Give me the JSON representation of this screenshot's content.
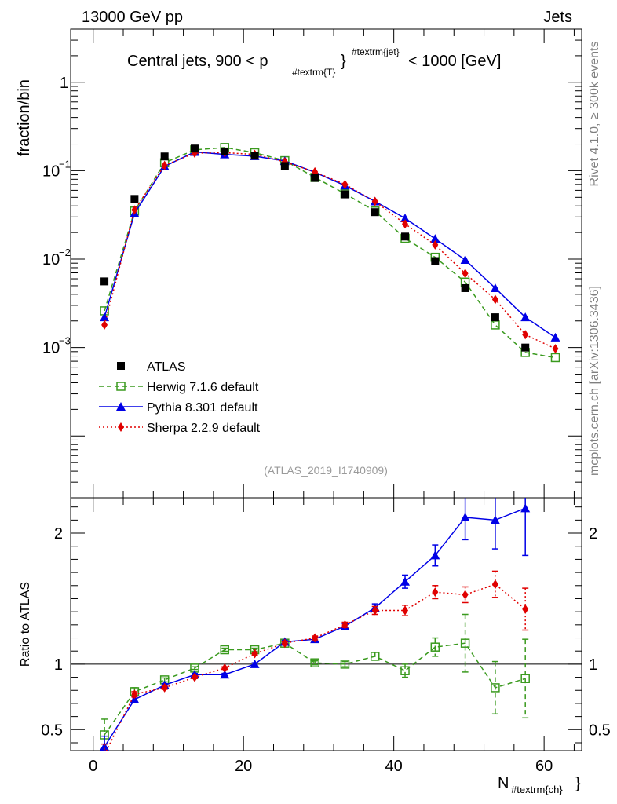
{
  "chart_data": [
    {
      "type": "line",
      "panel": "main",
      "yscale": "log",
      "header_left": "13000 GeV pp",
      "header_right": "Jets",
      "title": "Central jets, 900 < p#textrm{T}#textrm{jet} < 1000 [GeV]",
      "title_parts": {
        "pre": "Central jets, 900 < p",
        "sub": "#textrm{T}",
        "sup": "#textrm{jet}",
        "post": "< 1000 [GeV]"
      },
      "ylabel": "fraction/bin",
      "xlabel": "N#textrm{ch}",
      "xlabel_parts": {
        "main": "N",
        "sub": "#textrm{ch}"
      },
      "xlim": [
        -3,
        65
      ],
      "ylim": [
        2e-05,
        4
      ],
      "yticks": [
        {
          "value": 1,
          "label": "1"
        },
        {
          "value": 0.1,
          "label": "10",
          "exp": "−1"
        },
        {
          "value": 0.01,
          "label": "10",
          "exp": "−2"
        },
        {
          "value": 0.001,
          "label": "10",
          "exp": "−3"
        }
      ],
      "side_label_top": "Rivet 4.1.0, ≥ 300k events",
      "side_label_bottom": "mcplots.cern.ch [arXiv:1306.3436]",
      "watermark": "(ATLAS_2019_I1740909)",
      "series": [
        {
          "name": "ATLAS",
          "color": "#000000",
          "marker": "square",
          "x": [
            1.5,
            5.5,
            9.5,
            13.5,
            17.5,
            21.5,
            25.5,
            29.5,
            33.5,
            37.5,
            41.5,
            45.5,
            49.5,
            53.5,
            57.5
          ],
          "y": [
            0.0056,
            0.048,
            0.145,
            0.178,
            0.165,
            0.148,
            0.113,
            0.083,
            0.054,
            0.034,
            0.018,
            0.0095,
            0.0047,
            0.0022,
            0.001
          ]
        },
        {
          "name": "Herwig 7.1.6 default",
          "color": "#3a9a1e",
          "marker": "open-square",
          "dash": "6,4",
          "x": [
            1.5,
            5.5,
            9.5,
            13.5,
            17.5,
            21.5,
            25.5,
            29.5,
            33.5,
            37.5,
            41.5,
            45.5,
            49.5,
            53.5,
            57.5,
            61.5
          ],
          "y": [
            0.0026,
            0.035,
            0.123,
            0.172,
            0.183,
            0.16,
            0.13,
            0.084,
            0.055,
            0.035,
            0.0172,
            0.0105,
            0.0055,
            0.0018,
            0.00088,
            0.00077
          ]
        },
        {
          "name": "Pythia 8.301 default",
          "color": "#0000e6",
          "marker": "triangle",
          "x": [
            1.5,
            5.5,
            9.5,
            13.5,
            17.5,
            21.5,
            25.5,
            29.5,
            33.5,
            37.5,
            41.5,
            45.5,
            49.5,
            53.5,
            57.5,
            61.5
          ],
          "y": [
            0.0022,
            0.033,
            0.112,
            0.163,
            0.153,
            0.146,
            0.129,
            0.096,
            0.068,
            0.045,
            0.029,
            0.017,
            0.0098,
            0.0047,
            0.0022,
            0.0013
          ]
        },
        {
          "name": "Sherpa 2.2.9 default",
          "color": "#e00000",
          "marker": "diamond",
          "dash": "2,3",
          "x": [
            1.5,
            5.5,
            9.5,
            13.5,
            17.5,
            21.5,
            25.5,
            29.5,
            33.5,
            37.5,
            41.5,
            45.5,
            49.5,
            53.5,
            57.5,
            61.5
          ],
          "y": [
            0.0018,
            0.036,
            0.115,
            0.158,
            0.16,
            0.153,
            0.126,
            0.097,
            0.07,
            0.045,
            0.025,
            0.0145,
            0.0069,
            0.0035,
            0.0014,
            0.00097
          ]
        }
      ]
    },
    {
      "type": "line",
      "panel": "ratio",
      "ylabel": "Ratio to ATLAS",
      "xlim": [
        -3,
        65
      ],
      "ylim": [
        0.34,
        2.27
      ],
      "xticks": [
        0,
        20,
        40,
        60
      ],
      "yticks": [
        0.5,
        1,
        2
      ],
      "reference_line": 1,
      "series": [
        {
          "name": "Herwig 7.1.6 default",
          "color": "#3a9a1e",
          "marker": "open-square",
          "dash": "6,4",
          "x": [
            1.5,
            5.5,
            9.5,
            13.5,
            17.5,
            21.5,
            25.5,
            29.5,
            33.5,
            37.5,
            41.5,
            45.5,
            49.5,
            53.5,
            57.5
          ],
          "y": [
            0.46,
            0.79,
            0.88,
            0.97,
            1.11,
            1.11,
            1.16,
            1.01,
            1.0,
            1.06,
            0.95,
            1.13,
            1.16,
            0.82,
            0.89
          ],
          "err": [
            0.12,
            0.03,
            0.015,
            0.01,
            0.012,
            0.012,
            0.012,
            0.015,
            0.02,
            0.03,
            0.05,
            0.07,
            0.22,
            0.2,
            0.3
          ]
        },
        {
          "name": "Pythia 8.301 default",
          "color": "#0000e6",
          "marker": "triangle",
          "x": [
            1.5,
            5.5,
            9.5,
            13.5,
            17.5,
            21.5,
            25.5,
            29.5,
            33.5,
            37.5,
            41.5,
            45.5,
            49.5,
            53.5,
            57.5
          ],
          "y": [
            0.37,
            0.73,
            0.84,
            0.92,
            0.92,
            1.0,
            1.17,
            1.19,
            1.29,
            1.43,
            1.63,
            1.83,
            2.12,
            2.1,
            2.19
          ],
          "err": [
            0.08,
            0.02,
            0.012,
            0.01,
            0.01,
            0.01,
            0.012,
            0.015,
            0.02,
            0.03,
            0.05,
            0.08,
            0.17,
            0.22,
            0.36
          ]
        },
        {
          "name": "Sherpa 2.2.9 default",
          "color": "#e00000",
          "marker": "diamond",
          "dash": "2,3",
          "x": [
            1.5,
            5.5,
            9.5,
            13.5,
            17.5,
            21.5,
            25.5,
            29.5,
            33.5,
            37.5,
            41.5,
            45.5,
            49.5,
            53.5,
            57.5
          ],
          "y": [
            0.31,
            0.77,
            0.82,
            0.9,
            0.97,
            1.08,
            1.16,
            1.2,
            1.3,
            1.41,
            1.41,
            1.55,
            1.53,
            1.61,
            1.42
          ],
          "err": [
            0.08,
            0.02,
            0.012,
            0.01,
            0.01,
            0.01,
            0.012,
            0.015,
            0.02,
            0.03,
            0.04,
            0.05,
            0.06,
            0.1,
            0.16
          ]
        }
      ]
    }
  ]
}
